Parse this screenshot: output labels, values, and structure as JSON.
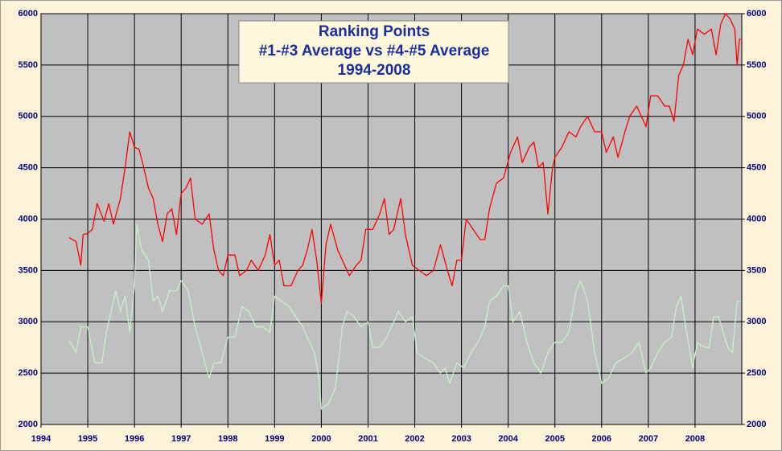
{
  "chart_data": {
    "type": "line",
    "title": [
      "Ranking Points",
      "#1-#3 Average vs #4-#5 Average",
      "1994-2008"
    ],
    "xlim": [
      1994,
      2009
    ],
    "xticks": [
      1994,
      1995,
      1996,
      1997,
      1998,
      1999,
      2000,
      2001,
      2002,
      2003,
      2004,
      2005,
      2006,
      2007,
      2008
    ],
    "ylim": [
      2000,
      6000
    ],
    "yticks": [
      2000,
      2500,
      3000,
      3500,
      4000,
      4500,
      5000,
      5500,
      6000
    ],
    "y2lim": [
      2000,
      6000
    ],
    "y2ticks": [
      2000,
      2500,
      3000,
      3500,
      4000,
      4500,
      5000,
      5500,
      6000
    ],
    "grid": true,
    "series": [
      {
        "color": "#ff0000",
        "x": [
          1994.6,
          1994.75,
          1994.85,
          1994.9,
          1995.0,
          1995.1,
          1995.2,
          1995.35,
          1995.45,
          1995.55,
          1995.7,
          1995.8,
          1995.9,
          1996.0,
          1996.1,
          1996.2,
          1996.3,
          1996.4,
          1996.5,
          1996.6,
          1996.7,
          1996.8,
          1996.9,
          1997.0,
          1997.1,
          1997.2,
          1997.3,
          1997.45,
          1997.6,
          1997.7,
          1997.8,
          1997.9,
          1998.0,
          1998.15,
          1998.25,
          1998.4,
          1998.5,
          1998.65,
          1998.8,
          1998.9,
          1999.0,
          1999.1,
          1999.2,
          1999.35,
          1999.5,
          1999.6,
          1999.7,
          1999.8,
          1999.9,
          2000.0,
          2000.1,
          2000.2,
          2000.35,
          2000.5,
          2000.6,
          2000.75,
          2000.85,
          2000.95,
          2001.1,
          2001.25,
          2001.35,
          2001.45,
          2001.55,
          2001.7,
          2001.8,
          2001.95,
          2002.1,
          2002.25,
          2002.4,
          2002.55,
          2002.7,
          2002.8,
          2002.9,
          2003.0,
          2003.1,
          2003.25,
          2003.4,
          2003.5,
          2003.6,
          2003.75,
          2003.9,
          2004.05,
          2004.2,
          2004.3,
          2004.45,
          2004.55,
          2004.65,
          2004.75,
          2004.85,
          2004.95,
          2005.0,
          2005.15,
          2005.3,
          2005.45,
          2005.55,
          2005.7,
          2005.85,
          2006.0,
          2006.1,
          2006.25,
          2006.35,
          2006.5,
          2006.6,
          2006.75,
          2006.85,
          2006.95,
          2007.05,
          2007.2,
          2007.35,
          2007.45,
          2007.55,
          2007.65,
          2007.75,
          2007.85,
          2007.95,
          2008.05,
          2008.2,
          2008.35,
          2008.45,
          2008.55,
          2008.65,
          2008.75,
          2008.85,
          2008.9,
          2008.95,
          2008.98
        ],
        "values": [
          3820,
          3780,
          3550,
          3850,
          3860,
          3900,
          4150,
          3980,
          4150,
          3950,
          4200,
          4500,
          4850,
          4700,
          4680,
          4500,
          4300,
          4200,
          3950,
          3780,
          4050,
          4100,
          3850,
          4250,
          4300,
          4400,
          4000,
          3950,
          4050,
          3700,
          3500,
          3450,
          3650,
          3650,
          3450,
          3500,
          3600,
          3500,
          3650,
          3850,
          3550,
          3600,
          3350,
          3350,
          3500,
          3550,
          3700,
          3900,
          3600,
          3180,
          3750,
          3950,
          3700,
          3550,
          3450,
          3550,
          3600,
          3900,
          3900,
          4050,
          4200,
          3850,
          3900,
          4200,
          3850,
          3550,
          3500,
          3450,
          3500,
          3750,
          3500,
          3350,
          3600,
          3600,
          4000,
          3900,
          3800,
          3800,
          4100,
          4350,
          4400,
          4650,
          4800,
          4550,
          4700,
          4750,
          4500,
          4550,
          4050,
          4500,
          4600,
          4700,
          4850,
          4800,
          4900,
          5000,
          4850,
          4850,
          4650,
          4800,
          4600,
          4850,
          5000,
          5100,
          5000,
          4900,
          5200,
          5200,
          5100,
          5100,
          4950,
          5400,
          5500,
          5750,
          5600,
          5850,
          5800,
          5850,
          5600,
          5900,
          6000,
          5950,
          5850,
          5500,
          5750,
          5750
        ]
      },
      {
        "color": "#c8f0c8",
        "x": [
          1994.6,
          1994.75,
          1994.85,
          1995.0,
          1995.15,
          1995.3,
          1995.4,
          1995.5,
          1995.6,
          1995.7,
          1995.8,
          1995.9,
          1996.0,
          1996.05,
          1996.15,
          1996.3,
          1996.4,
          1996.5,
          1996.6,
          1996.75,
          1996.9,
          1997.0,
          1997.15,
          1997.3,
          1997.45,
          1997.6,
          1997.7,
          1997.85,
          1998.0,
          1998.15,
          1998.3,
          1998.45,
          1998.6,
          1998.75,
          1998.9,
          1999.0,
          1999.15,
          1999.3,
          1999.45,
          1999.6,
          1999.75,
          1999.85,
          1999.95,
          2000.0,
          2000.15,
          2000.3,
          2000.45,
          2000.55,
          2000.7,
          2000.85,
          2001.0,
          2001.1,
          2001.25,
          2001.4,
          2001.55,
          2001.65,
          2001.8,
          2001.95,
          2002.05,
          2002.2,
          2002.4,
          2002.55,
          2002.65,
          2002.75,
          2002.9,
          2003.05,
          2003.2,
          2003.35,
          2003.5,
          2003.6,
          2003.75,
          2003.9,
          2004.0,
          2004.1,
          2004.25,
          2004.4,
          2004.55,
          2004.7,
          2004.85,
          2005.0,
          2005.15,
          2005.3,
          2005.45,
          2005.55,
          2005.7,
          2005.85,
          2006.0,
          2006.15,
          2006.3,
          2006.5,
          2006.65,
          2006.8,
          2006.95,
          2007.05,
          2007.2,
          2007.35,
          2007.5,
          2007.6,
          2007.7,
          2007.8,
          2007.95,
          2008.05,
          2008.2,
          2008.3,
          2008.4,
          2008.5,
          2008.6,
          2008.7,
          2008.8,
          2008.9,
          2008.98
        ],
        "values": [
          2820,
          2700,
          2950,
          2950,
          2600,
          2600,
          2900,
          3100,
          3300,
          3100,
          3250,
          2900,
          3350,
          3950,
          3700,
          3600,
          3200,
          3250,
          3100,
          3300,
          3300,
          3400,
          3300,
          2950,
          2700,
          2450,
          2600,
          2600,
          2850,
          2850,
          3150,
          3100,
          2950,
          2950,
          2900,
          3250,
          3200,
          3150,
          3050,
          2950,
          2800,
          2700,
          2450,
          2150,
          2200,
          2350,
          2950,
          3100,
          3050,
          2950,
          3000,
          2750,
          2750,
          2850,
          3000,
          3100,
          3000,
          3050,
          2700,
          2650,
          2600,
          2500,
          2550,
          2400,
          2600,
          2550,
          2700,
          2800,
          2950,
          3200,
          3250,
          3350,
          3350,
          3000,
          3100,
          2800,
          2600,
          2500,
          2700,
          2800,
          2800,
          2900,
          3300,
          3400,
          3200,
          2700,
          2400,
          2450,
          2600,
          2650,
          2700,
          2800,
          2500,
          2550,
          2700,
          2800,
          2850,
          3150,
          3250,
          2950,
          2550,
          2800,
          2750,
          2750,
          3050,
          3050,
          2900,
          2750,
          2700,
          3200,
          3200
        ]
      }
    ]
  }
}
